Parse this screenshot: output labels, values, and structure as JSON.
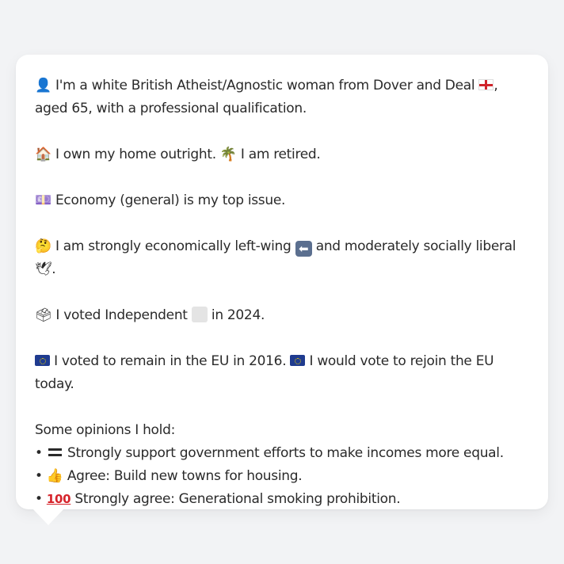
{
  "profile": {
    "intro_pre": "I'm a white British Atheist/Agnostic woman from Dover and Deal",
    "intro_post": ", aged 65, with a professional qualification.",
    "home": "I own my home outright.",
    "retired": "I am retired.",
    "top_issue": "Economy (general) is my top issue.",
    "econ_pre": "I am strongly economically left-wing",
    "econ_post": "and moderately socially liberal",
    "econ_end": ".",
    "voted_pre": "I voted Independent",
    "voted_post": "in 2024.",
    "eu_remain": "I voted to remain in the EU in 2016.",
    "eu_rejoin": "I would vote to rejoin the EU today.",
    "opinions_heading": "Some opinions I hold:",
    "opinions": [
      {
        "bullet": "•",
        "icon": "equals-icon",
        "text": "Strongly support government efforts to make incomes more equal."
      },
      {
        "bullet": "•",
        "icon": "thumbs-up-icon",
        "text": "Agree: Build new towns for housing."
      },
      {
        "bullet": "•",
        "icon": "hundred-icon",
        "text": "Strongly agree: Generational smoking prohibition."
      }
    ]
  },
  "icons": {
    "person": "👤",
    "house": "🏠",
    "palm": "🌴",
    "money": "💷",
    "thinking": "🤔",
    "arrow_left": "⬅",
    "dove": "🕊",
    "ballot": "🗳",
    "thumbs_up": "👍",
    "hundred": "100"
  },
  "colors": {
    "background": "#f2f3f5",
    "bubble": "#ffffff",
    "text": "#2a2a2a"
  }
}
